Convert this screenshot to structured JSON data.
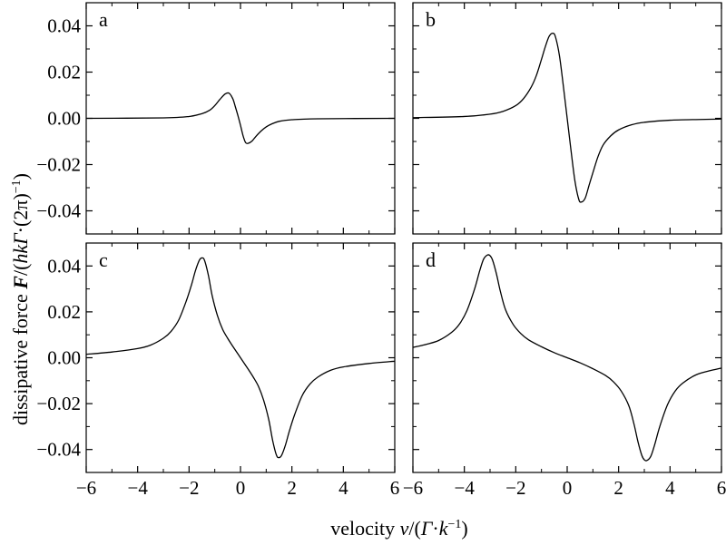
{
  "figure": {
    "ylabel_prefix": "dissipative force ",
    "ylabel_symbol": "F",
    "ylabel_rest": "/(",
    "ylabel_hk": "hk",
    "ylabel_gamma": "Γ",
    "ylabel_tail": "·(2π)",
    "ylabel_exp": "−1",
    "xlabel_prefix": "velocity ",
    "xlabel_v": "v",
    "xlabel_open": "/(",
    "xlabel_gamma": "Γ",
    "xlabel_dot": "·",
    "xlabel_k": "k",
    "xlabel_exp": "−1",
    "xlabel_close": ")"
  },
  "chart_data": [
    {
      "type": "line",
      "panel": "a",
      "xlim": [
        -6,
        6
      ],
      "ylim": [
        -0.05,
        0.05
      ],
      "xticks": [
        -6,
        -4,
        -2,
        0,
        2,
        4,
        6
      ],
      "yticks": [
        0.04,
        0.02,
        0.0,
        -0.02,
        -0.04
      ],
      "ytick_labels": [
        "0.04",
        "0.02",
        "0.00",
        "−0.02",
        "−0.04"
      ],
      "series": [
        {
          "x": [
            -6,
            -3,
            -2,
            -1.5,
            -1.2,
            -1.0,
            -0.8,
            -0.6,
            -0.45,
            -0.3,
            -0.2,
            -0.1,
            0,
            0.1,
            0.2,
            0.3,
            0.45,
            0.6,
            0.8,
            1.0,
            1.2,
            1.5,
            2,
            3,
            6
          ],
          "y": [
            0.0,
            0.0002,
            0.0008,
            0.002,
            0.0035,
            0.0055,
            0.0082,
            0.0105,
            0.0109,
            0.0085,
            0.005,
            0.0012,
            -0.003,
            -0.0075,
            -0.0105,
            -0.0108,
            -0.0098,
            -0.0078,
            -0.0055,
            -0.0037,
            -0.0025,
            -0.0013,
            -0.0006,
            -0.0002,
            0.0
          ]
        }
      ]
    },
    {
      "type": "line",
      "panel": "b",
      "xlim": [
        -6,
        6
      ],
      "ylim": [
        -0.05,
        0.05
      ],
      "xticks": [
        -6,
        -4,
        -2,
        0,
        2,
        4,
        6
      ],
      "yticks": [
        0.04,
        0.02,
        0.0,
        -0.02,
        -0.04
      ],
      "ytick_labels": [
        "0.04",
        "0.02",
        "0.00",
        "−0.02",
        "−0.04"
      ],
      "series": [
        {
          "x": [
            -6,
            -4,
            -3,
            -2.5,
            -2,
            -1.7,
            -1.4,
            -1.2,
            -1.0,
            -0.85,
            -0.7,
            -0.55,
            -0.45,
            -0.3,
            -0.15,
            0,
            0.15,
            0.3,
            0.45,
            0.55,
            0.7,
            0.85,
            1.0,
            1.2,
            1.4,
            1.7,
            2,
            2.5,
            3,
            4,
            6
          ],
          "y": [
            0.0003,
            0.0008,
            0.0018,
            0.003,
            0.0055,
            0.0085,
            0.0135,
            0.0185,
            0.0255,
            0.031,
            0.0355,
            0.0368,
            0.035,
            0.027,
            0.014,
            0.0,
            -0.014,
            -0.027,
            -0.035,
            -0.0362,
            -0.0345,
            -0.029,
            -0.0235,
            -0.0165,
            -0.0115,
            -0.0075,
            -0.005,
            -0.0028,
            -0.0017,
            -0.0008,
            -0.0003
          ]
        }
      ]
    },
    {
      "type": "line",
      "panel": "c",
      "xlim": [
        -6,
        6
      ],
      "ylim": [
        -0.05,
        0.05
      ],
      "xticks": [
        -6,
        -4,
        -2,
        0,
        2,
        4,
        6
      ],
      "yticks": [
        0.04,
        0.02,
        0.0,
        -0.02,
        -0.04
      ],
      "ytick_labels": [
        "0.04",
        "0.02",
        "0.00",
        "−0.02",
        "−0.04"
      ],
      "series": [
        {
          "x": [
            -6,
            -5,
            -4,
            -3.5,
            -3,
            -2.7,
            -2.4,
            -2.1,
            -1.9,
            -1.75,
            -1.6,
            -1.5,
            -1.4,
            -1.25,
            -1.1,
            -0.9,
            -0.7,
            -0.5,
            -0.3,
            0,
            0.3,
            0.5,
            0.7,
            0.9,
            1.1,
            1.25,
            1.4,
            1.5,
            1.6,
            1.75,
            1.9,
            2.1,
            2.4,
            2.7,
            3,
            3.5,
            4,
            5,
            6
          ],
          "y": [
            0.0015,
            0.0025,
            0.004,
            0.0055,
            0.0085,
            0.0115,
            0.0165,
            0.025,
            0.032,
            0.038,
            0.0425,
            0.0435,
            0.0425,
            0.036,
            0.027,
            0.0185,
            0.0125,
            0.0085,
            0.005,
            0.0,
            -0.005,
            -0.0085,
            -0.0125,
            -0.0185,
            -0.027,
            -0.036,
            -0.0425,
            -0.0435,
            -0.0425,
            -0.038,
            -0.032,
            -0.025,
            -0.0165,
            -0.0115,
            -0.0085,
            -0.0055,
            -0.004,
            -0.0025,
            -0.0015
          ]
        }
      ]
    },
    {
      "type": "line",
      "panel": "d",
      "xlim": [
        -6,
        6
      ],
      "ylim": [
        -0.05,
        0.05
      ],
      "xticks": [
        -6,
        -4,
        -2,
        0,
        2,
        4,
        6
      ],
      "yticks": [
        0.04,
        0.02,
        0.0,
        -0.02,
        -0.04
      ],
      "ytick_labels": [
        "0.04",
        "0.02",
        "0.00",
        "−0.02",
        "−0.04"
      ],
      "series": [
        {
          "x": [
            -6,
            -5.5,
            -5,
            -4.5,
            -4.2,
            -3.9,
            -3.6,
            -3.4,
            -3.25,
            -3.1,
            -3.0,
            -2.9,
            -2.75,
            -2.6,
            -2.4,
            -2.1,
            -1.8,
            -1.5,
            -1,
            -0.5,
            0,
            0.5,
            1,
            1.5,
            1.8,
            2.1,
            2.4,
            2.6,
            2.75,
            2.9,
            3.0,
            3.1,
            3.25,
            3.4,
            3.6,
            3.9,
            4.2,
            4.5,
            5,
            5.5,
            6
          ],
          "y": [
            0.0045,
            0.0058,
            0.0075,
            0.011,
            0.0145,
            0.0205,
            0.03,
            0.038,
            0.043,
            0.0448,
            0.0445,
            0.0425,
            0.0365,
            0.029,
            0.021,
            0.0145,
            0.0105,
            0.0078,
            0.0048,
            0.0022,
            0.0,
            -0.0022,
            -0.0048,
            -0.0078,
            -0.0105,
            -0.0145,
            -0.021,
            -0.029,
            -0.0365,
            -0.0425,
            -0.0445,
            -0.0448,
            -0.043,
            -0.038,
            -0.03,
            -0.0205,
            -0.0145,
            -0.011,
            -0.0075,
            -0.0058,
            -0.0045
          ]
        }
      ]
    }
  ]
}
